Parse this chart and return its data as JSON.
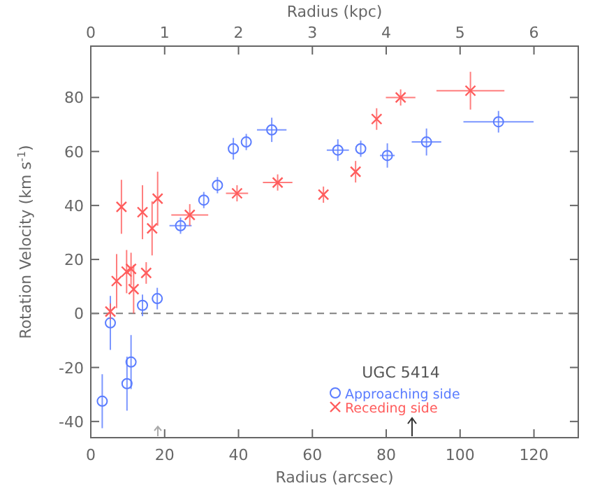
{
  "chart_data": {
    "type": "scatter",
    "xlabel": "Radius (arcsec)",
    "x2label": "Radius (kpc)",
    "ylabel": "Rotation Velocity (km s$^{-1}$)",
    "legend_title": "UGC 5414",
    "xlim": [
      0,
      132
    ],
    "xticks": [
      0,
      20,
      40,
      60,
      80,
      100,
      120
    ],
    "x2lim": [
      0,
      6.6
    ],
    "x2ticks": [
      0,
      1,
      2,
      3,
      4,
      5,
      6
    ],
    "ylim": [
      -46,
      99
    ],
    "yticks": [
      -40,
      -20,
      0,
      20,
      40,
      60,
      80
    ],
    "grid": false,
    "legend": "bottom right",
    "ref_lines": [
      {
        "axis": "y",
        "value": 0,
        "line_style": "dashed",
        "color": "#808080"
      }
    ],
    "series": [
      {
        "name": "Approaching side",
        "color": "#5a7cff",
        "marker": "circle",
        "x": [
          3.1,
          5.3,
          9.8,
          10.9,
          14,
          18,
          24.3,
          30.6,
          34.3,
          38.6,
          42.1,
          49,
          66.9,
          73.1,
          80.3,
          90.9,
          110.4
        ],
        "values": [
          -32.5,
          -3.5,
          -26,
          -18,
          3,
          5.5,
          32.5,
          42,
          47.5,
          61,
          63.5,
          68,
          60.5,
          61,
          58.5,
          63.5,
          71
        ],
        "errors": [
          10,
          10,
          10,
          10,
          4,
          4,
          3,
          3,
          3,
          4,
          3,
          4.5,
          4,
          3,
          4.5,
          5,
          4
        ],
        "xerrors": [
          null,
          null,
          null,
          null,
          null,
          null,
          3,
          null,
          null,
          null,
          null,
          4,
          3,
          null,
          2,
          4,
          9.5
        ]
      },
      {
        "name": "Receding side",
        "color": "#ff5c5c",
        "marker": "cross",
        "x": [
          5.3,
          7,
          8.3,
          9.7,
          10.9,
          11.6,
          14,
          15,
          16.6,
          18.1,
          26.8,
          39.6,
          50.6,
          63,
          71.7,
          77.4,
          83.9,
          102.8
        ],
        "values": [
          0.7,
          12,
          39.5,
          15.5,
          16.5,
          9,
          37.5,
          15,
          31.5,
          42.5,
          36.5,
          44.5,
          48.5,
          44,
          52.5,
          72,
          80,
          82.5
        ],
        "errors": [
          3,
          10,
          10,
          8,
          6,
          9,
          10,
          4,
          10,
          10,
          4,
          3,
          3,
          3,
          4,
          4,
          3,
          7
        ],
        "xerrors": [
          null,
          null,
          null,
          null,
          null,
          null,
          null,
          null,
          null,
          null,
          5,
          3,
          4,
          null,
          null,
          null,
          4,
          9.2
        ]
      }
    ]
  }
}
